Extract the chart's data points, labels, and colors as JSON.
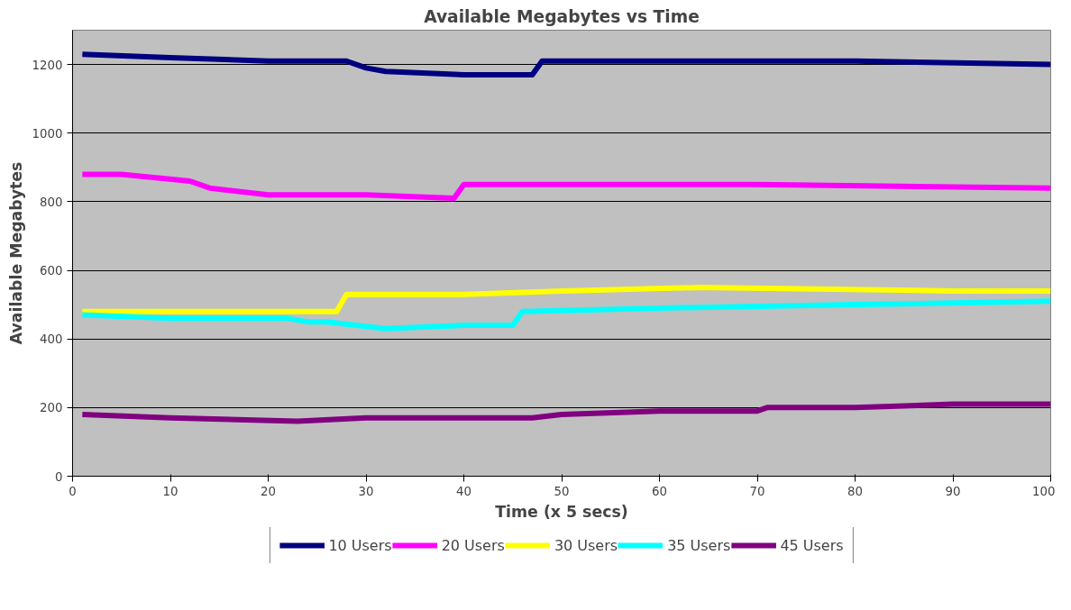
{
  "chart_data": {
    "type": "line",
    "title": "Available Megabytes vs Time",
    "xlabel": "Time (x 5 secs)",
    "ylabel": "Available Megabytes",
    "xlim": [
      0,
      100
    ],
    "xticks": [
      0,
      10,
      20,
      30,
      40,
      50,
      60,
      70,
      80,
      90,
      100
    ],
    "ylim": [
      0,
      1300
    ],
    "yticks": [
      0,
      200,
      400,
      600,
      800,
      1000,
      1200
    ],
    "grid": "y",
    "legend": "bottom",
    "marker": "none",
    "line_style": "solid",
    "series": [
      {
        "name": "10 Users",
        "color": "#000080",
        "x": [
          1,
          10,
          20,
          28,
          30,
          32,
          40,
          47,
          48,
          60,
          80,
          100
        ],
        "values": [
          1230,
          1220,
          1210,
          1210,
          1190,
          1180,
          1170,
          1170,
          1210,
          1210,
          1210,
          1200
        ]
      },
      {
        "name": "20 Users",
        "color": "#ff00ff",
        "x": [
          1,
          5,
          12,
          14,
          20,
          30,
          39,
          40,
          50,
          70,
          100
        ],
        "values": [
          880,
          880,
          860,
          840,
          820,
          820,
          810,
          850,
          850,
          850,
          840
        ]
      },
      {
        "name": "30 Users",
        "color": "#ffff00",
        "x": [
          1,
          27,
          28,
          40,
          50,
          64,
          90,
          93,
          100
        ],
        "values": [
          480,
          480,
          530,
          530,
          540,
          550,
          540,
          540,
          540
        ]
      },
      {
        "name": "35 Users",
        "color": "#00ffff",
        "x": [
          1,
          10,
          13,
          22,
          24,
          26,
          29,
          32,
          40,
          45,
          46,
          60,
          80,
          100
        ],
        "values": [
          470,
          460,
          460,
          460,
          450,
          450,
          440,
          430,
          440,
          440,
          480,
          490,
          500,
          510
        ]
      },
      {
        "name": "45 Users",
        "color": "#800080",
        "x": [
          1,
          10,
          23,
          30,
          47,
          50,
          60,
          70,
          71,
          80,
          90,
          100
        ],
        "values": [
          180,
          170,
          160,
          170,
          170,
          180,
          190,
          190,
          200,
          200,
          210,
          210
        ]
      }
    ]
  }
}
